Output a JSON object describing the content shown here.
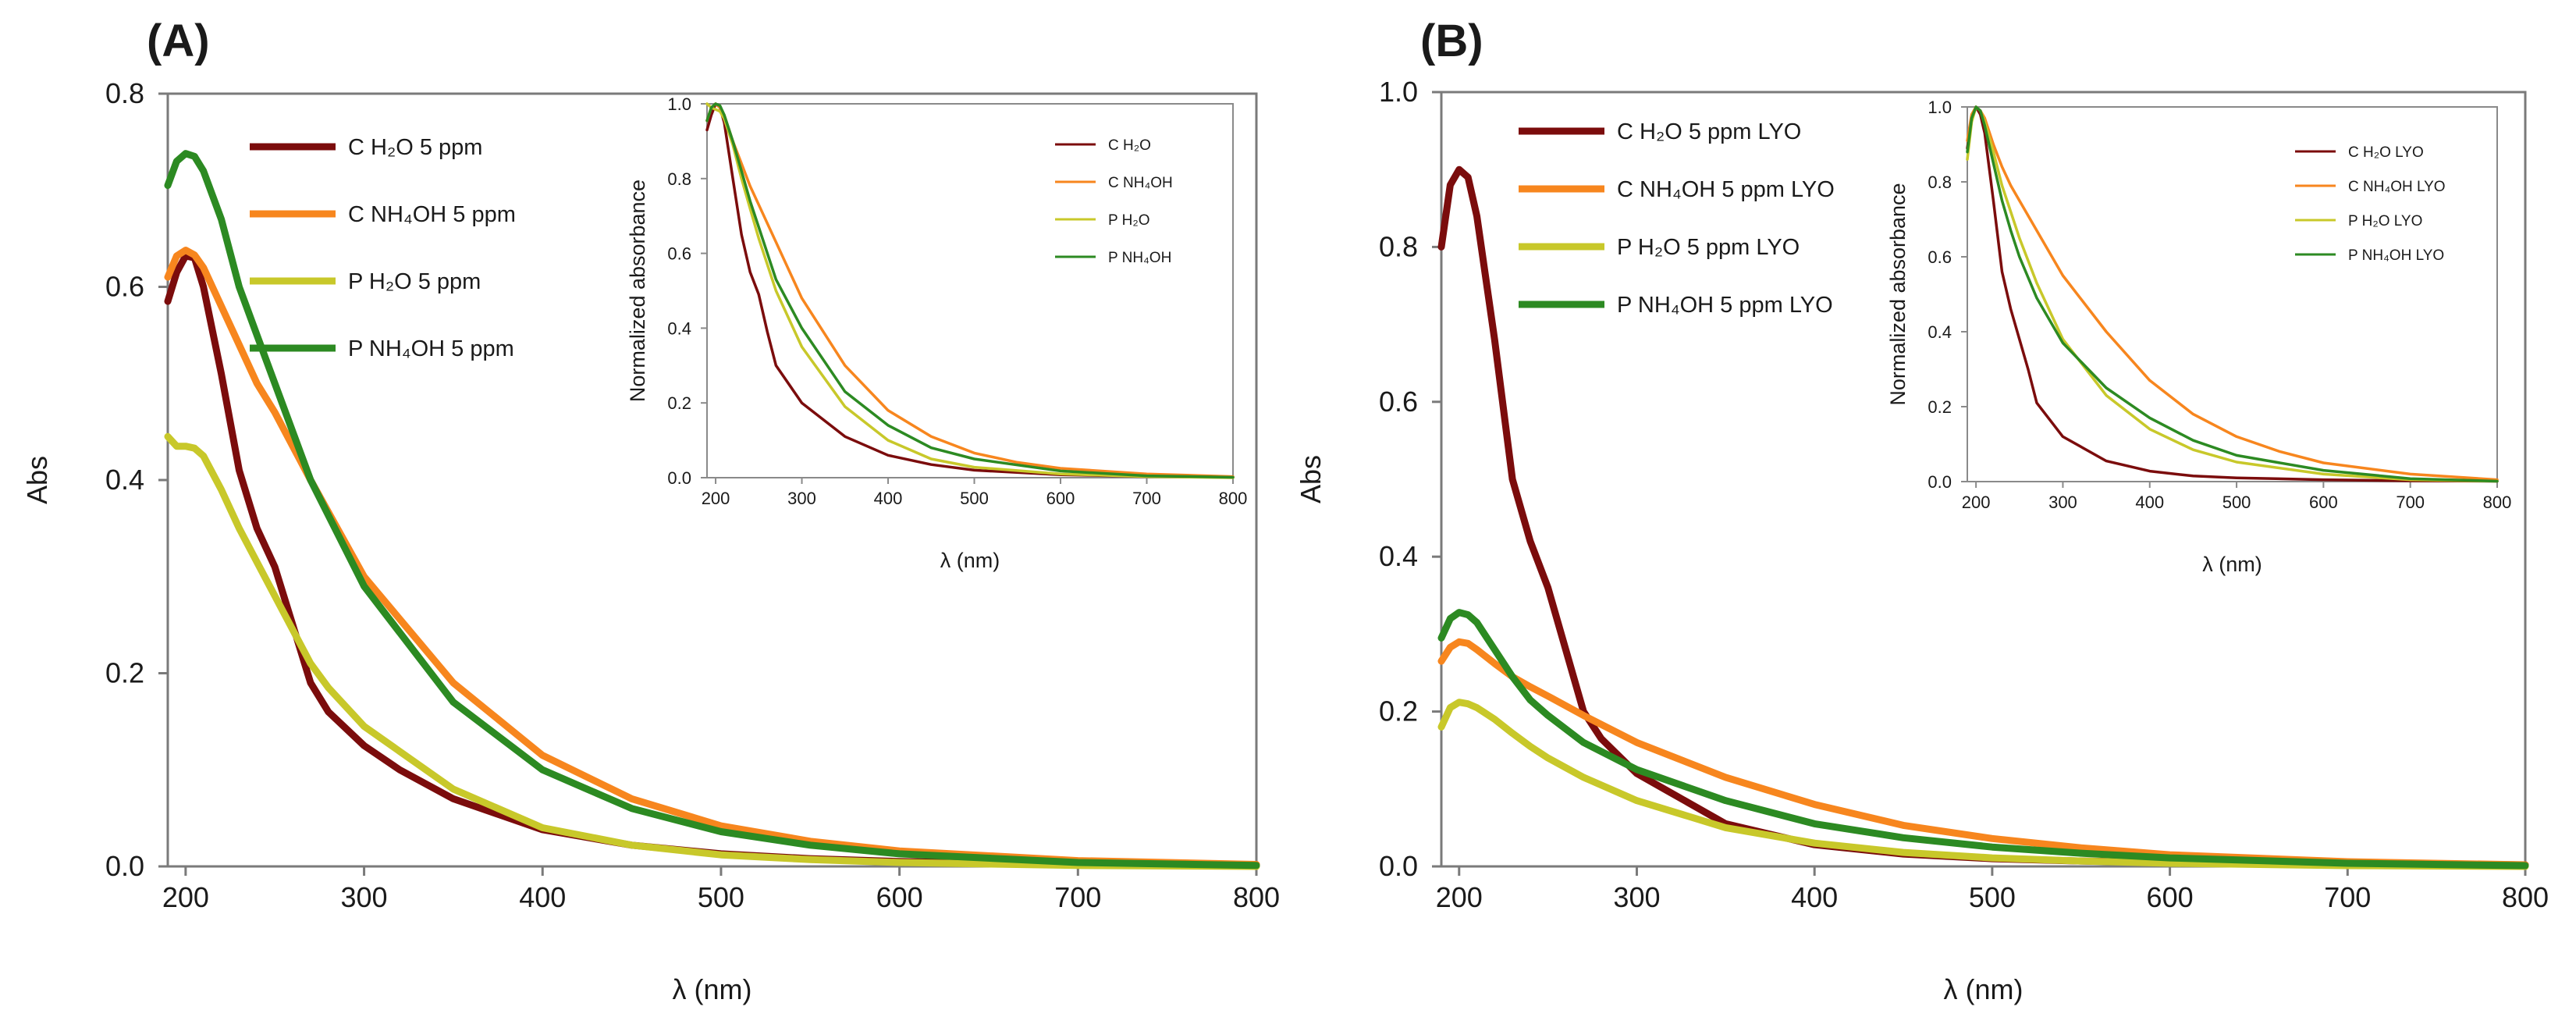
{
  "chart_data": [
    {
      "panel": "(A)",
      "type": "line",
      "xlabel": "λ (nm)",
      "ylabel": "Abs",
      "xlim": [
        190,
        800
      ],
      "ylim": [
        0,
        0.8
      ],
      "xticks": [
        200,
        300,
        400,
        500,
        600,
        700,
        800
      ],
      "yticks": [
        0.0,
        0.2,
        0.4,
        0.6,
        0.8
      ],
      "xtick_labels": [
        "200",
        "300",
        "400",
        "500",
        "600",
        "700",
        "800"
      ],
      "ytick_labels": [
        "0.0",
        "0.2",
        "0.4",
        "0.6",
        "0.8"
      ],
      "grid": false,
      "legend_position": "top-left",
      "series": [
        {
          "name": "C H₂O 5 ppm",
          "color": "#7b0c0c",
          "x": [
            190,
            195,
            200,
            205,
            210,
            220,
            230,
            240,
            250,
            260,
            270,
            280,
            300,
            320,
            350,
            400,
            450,
            500,
            550,
            600,
            700,
            800
          ],
          "y": [
            0.585,
            0.615,
            0.632,
            0.63,
            0.6,
            0.51,
            0.41,
            0.35,
            0.31,
            0.25,
            0.19,
            0.16,
            0.125,
            0.1,
            0.07,
            0.038,
            0.022,
            0.013,
            0.008,
            0.005,
            0.002,
            0.001
          ]
        },
        {
          "name": "C NH₄OH 5 ppm",
          "color": "#f7861e",
          "x": [
            190,
            195,
            200,
            205,
            210,
            220,
            230,
            240,
            250,
            270,
            300,
            350,
            400,
            450,
            500,
            550,
            600,
            700,
            800
          ],
          "y": [
            0.61,
            0.632,
            0.638,
            0.633,
            0.62,
            0.58,
            0.54,
            0.5,
            0.47,
            0.4,
            0.3,
            0.19,
            0.115,
            0.07,
            0.042,
            0.026,
            0.016,
            0.006,
            0.002
          ]
        },
        {
          "name": "P H₂O 5 ppm",
          "color": "#c8c82a",
          "x": [
            190,
            195,
            200,
            205,
            210,
            220,
            230,
            240,
            250,
            260,
            270,
            280,
            300,
            350,
            400,
            450,
            500,
            550,
            600,
            700,
            800
          ],
          "y": [
            0.445,
            0.435,
            0.435,
            0.433,
            0.425,
            0.39,
            0.35,
            0.315,
            0.28,
            0.245,
            0.21,
            0.185,
            0.145,
            0.08,
            0.04,
            0.022,
            0.012,
            0.007,
            0.004,
            0.001,
            0.0
          ]
        },
        {
          "name": "P NH₄OH 5 ppm",
          "color": "#2c8a22",
          "x": [
            190,
            195,
            200,
            205,
            210,
            220,
            230,
            240,
            250,
            270,
            300,
            350,
            400,
            450,
            500,
            550,
            600,
            700,
            800
          ],
          "y": [
            0.705,
            0.73,
            0.738,
            0.735,
            0.72,
            0.67,
            0.6,
            0.55,
            0.5,
            0.4,
            0.29,
            0.17,
            0.1,
            0.06,
            0.036,
            0.022,
            0.013,
            0.004,
            0.001
          ]
        }
      ],
      "inset": {
        "type": "line",
        "xlabel": "λ (nm)",
        "ylabel": "Normalized absorbance",
        "xlim": [
          190,
          800
        ],
        "ylim": [
          0,
          1.0
        ],
        "xticks": [
          200,
          300,
          400,
          500,
          600,
          700,
          800
        ],
        "yticks": [
          0.0,
          0.2,
          0.4,
          0.6,
          0.8,
          1.0
        ],
        "xtick_labels": [
          "200",
          "300",
          "400",
          "500",
          "600",
          "700",
          "800"
        ],
        "ytick_labels": [
          "0.0",
          "0.2",
          "0.4",
          "0.6",
          "0.8",
          "1.0"
        ],
        "legend_position": "top-right",
        "series": [
          {
            "name": "C H₂O",
            "color": "#7b0c0c",
            "x": [
              190,
              195,
              200,
              205,
              210,
              220,
              230,
              240,
              250,
              260,
              270,
              300,
              350,
              400,
              450,
              500,
              600,
              700,
              800
            ],
            "y": [
              0.93,
              0.97,
              1.0,
              0.99,
              0.95,
              0.8,
              0.65,
              0.55,
              0.49,
              0.39,
              0.3,
              0.2,
              0.11,
              0.06,
              0.035,
              0.02,
              0.008,
              0.003,
              0.001
            ]
          },
          {
            "name": "C NH₄OH",
            "color": "#f7861e",
            "x": [
              190,
              195,
              200,
              205,
              210,
              220,
              230,
              240,
              250,
              270,
              300,
              350,
              400,
              450,
              500,
              550,
              600,
              700,
              800
            ],
            "y": [
              0.955,
              0.99,
              1.0,
              0.99,
              0.97,
              0.9,
              0.84,
              0.78,
              0.73,
              0.63,
              0.48,
              0.3,
              0.18,
              0.11,
              0.066,
              0.041,
              0.025,
              0.01,
              0.003
            ]
          },
          {
            "name": "P H₂O",
            "color": "#c8c82a",
            "x": [
              190,
              195,
              200,
              205,
              210,
              220,
              230,
              240,
              250,
              270,
              300,
              350,
              400,
              450,
              500,
              600,
              700,
              800
            ],
            "y": [
              1.0,
              0.99,
              0.985,
              0.98,
              0.96,
              0.89,
              0.8,
              0.72,
              0.64,
              0.5,
              0.35,
              0.19,
              0.1,
              0.05,
              0.028,
              0.01,
              0.003,
              0.0
            ]
          },
          {
            "name": "P NH₄OH",
            "color": "#2c8a22",
            "x": [
              190,
              195,
              200,
              205,
              210,
              220,
              230,
              240,
              250,
              270,
              300,
              350,
              400,
              450,
              500,
              600,
              700,
              800
            ],
            "y": [
              0.955,
              0.99,
              1.0,
              0.995,
              0.97,
              0.9,
              0.82,
              0.74,
              0.67,
              0.53,
              0.4,
              0.23,
              0.14,
              0.08,
              0.05,
              0.018,
              0.005,
              0.001
            ]
          }
        ]
      }
    },
    {
      "panel": "(B)",
      "type": "line",
      "xlabel": "λ (nm)",
      "ylabel": "Abs",
      "xlim": [
        190,
        800
      ],
      "ylim": [
        0,
        1.0
      ],
      "xticks": [
        200,
        300,
        400,
        500,
        600,
        700,
        800
      ],
      "yticks": [
        0.0,
        0.2,
        0.4,
        0.6,
        0.8,
        1.0
      ],
      "xtick_labels": [
        "200",
        "300",
        "400",
        "500",
        "600",
        "700",
        "800"
      ],
      "ytick_labels": [
        "0.0",
        "0.2",
        "0.4",
        "0.6",
        "0.8",
        "1.0"
      ],
      "grid": false,
      "legend_position": "top-left",
      "series": [
        {
          "name": "C H₂O 5 ppm LYO",
          "color": "#7b0c0c",
          "x": [
            190,
            195,
            200,
            205,
            210,
            220,
            230,
            240,
            250,
            260,
            270,
            280,
            300,
            350,
            400,
            450,
            500,
            550,
            600,
            700,
            800
          ],
          "y": [
            0.8,
            0.88,
            0.9,
            0.89,
            0.84,
            0.68,
            0.5,
            0.42,
            0.36,
            0.28,
            0.2,
            0.165,
            0.12,
            0.055,
            0.028,
            0.016,
            0.01,
            0.007,
            0.005,
            0.003,
            0.002
          ]
        },
        {
          "name": "C NH₄OH 5 ppm LYO",
          "color": "#f7861e",
          "x": [
            190,
            195,
            200,
            205,
            210,
            220,
            230,
            240,
            250,
            270,
            300,
            350,
            400,
            450,
            500,
            550,
            600,
            700,
            800
          ],
          "y": [
            0.265,
            0.283,
            0.29,
            0.288,
            0.28,
            0.262,
            0.245,
            0.232,
            0.22,
            0.195,
            0.16,
            0.115,
            0.08,
            0.053,
            0.036,
            0.024,
            0.015,
            0.006,
            0.002
          ]
        },
        {
          "name": "P H₂O 5 ppm LYO",
          "color": "#c8c82a",
          "x": [
            190,
            195,
            200,
            205,
            210,
            220,
            230,
            240,
            250,
            270,
            300,
            350,
            400,
            450,
            500,
            550,
            600,
            700,
            800
          ],
          "y": [
            0.18,
            0.205,
            0.212,
            0.21,
            0.205,
            0.19,
            0.172,
            0.155,
            0.14,
            0.115,
            0.085,
            0.05,
            0.03,
            0.018,
            0.011,
            0.007,
            0.004,
            0.001,
            0.0
          ]
        },
        {
          "name": "P NH₄OH 5 ppm LYO",
          "color": "#2c8a22",
          "x": [
            190,
            195,
            200,
            205,
            210,
            220,
            230,
            240,
            250,
            270,
            300,
            350,
            400,
            450,
            500,
            550,
            600,
            700,
            800
          ],
          "y": [
            0.295,
            0.32,
            0.328,
            0.325,
            0.315,
            0.28,
            0.245,
            0.215,
            0.195,
            0.16,
            0.125,
            0.085,
            0.055,
            0.037,
            0.025,
            0.017,
            0.011,
            0.004,
            0.001
          ]
        }
      ],
      "inset": {
        "type": "line",
        "xlabel": "λ (nm)",
        "ylabel": "Normalized absorbance",
        "xlim": [
          190,
          800
        ],
        "ylim": [
          0,
          1.0
        ],
        "xticks": [
          200,
          300,
          400,
          500,
          600,
          700,
          800
        ],
        "yticks": [
          0.0,
          0.2,
          0.4,
          0.6,
          0.8,
          1.0
        ],
        "xtick_labels": [
          "200",
          "300",
          "400",
          "500",
          "600",
          "700",
          "800"
        ],
        "ytick_labels": [
          "0.0",
          "0.2",
          "0.4",
          "0.6",
          "0.8",
          "1.0"
        ],
        "legend_position": "top-right",
        "series": [
          {
            "name": "C H₂O LYO",
            "color": "#7b0c0c",
            "x": [
              190,
              195,
              200,
              205,
              210,
              220,
              230,
              240,
              250,
              260,
              270,
              300,
              350,
              400,
              450,
              500,
              600,
              700,
              800
            ],
            "y": [
              0.89,
              0.97,
              1.0,
              0.98,
              0.93,
              0.75,
              0.56,
              0.46,
              0.38,
              0.3,
              0.21,
              0.12,
              0.055,
              0.028,
              0.015,
              0.01,
              0.005,
              0.002,
              0.001
            ]
          },
          {
            "name": "C NH₄OH LYO",
            "color": "#f7861e",
            "x": [
              190,
              195,
              200,
              205,
              210,
              220,
              230,
              240,
              250,
              270,
              300,
              350,
              400,
              450,
              500,
              550,
              600,
              700,
              800
            ],
            "y": [
              0.91,
              0.98,
              1.0,
              0.99,
              0.97,
              0.9,
              0.84,
              0.79,
              0.75,
              0.67,
              0.55,
              0.4,
              0.27,
              0.18,
              0.12,
              0.08,
              0.05,
              0.02,
              0.005
            ]
          },
          {
            "name": "P H₂O LYO",
            "color": "#c8c82a",
            "x": [
              190,
              195,
              200,
              205,
              210,
              220,
              230,
              240,
              250,
              270,
              300,
              350,
              400,
              450,
              500,
              600,
              700,
              800
            ],
            "y": [
              0.86,
              0.96,
              1.0,
              0.99,
              0.96,
              0.88,
              0.79,
              0.72,
              0.65,
              0.53,
              0.38,
              0.23,
              0.14,
              0.085,
              0.052,
              0.02,
              0.005,
              0.001
            ]
          },
          {
            "name": "P NH₄OH LYO",
            "color": "#2c8a22",
            "x": [
              190,
              195,
              200,
              205,
              210,
              220,
              230,
              240,
              250,
              270,
              300,
              350,
              400,
              450,
              500,
              600,
              700,
              800
            ],
            "y": [
              0.88,
              0.97,
              1.0,
              0.99,
              0.95,
              0.85,
              0.75,
              0.67,
              0.6,
              0.49,
              0.37,
              0.25,
              0.17,
              0.11,
              0.07,
              0.03,
              0.008,
              0.001
            ]
          }
        ]
      }
    }
  ]
}
